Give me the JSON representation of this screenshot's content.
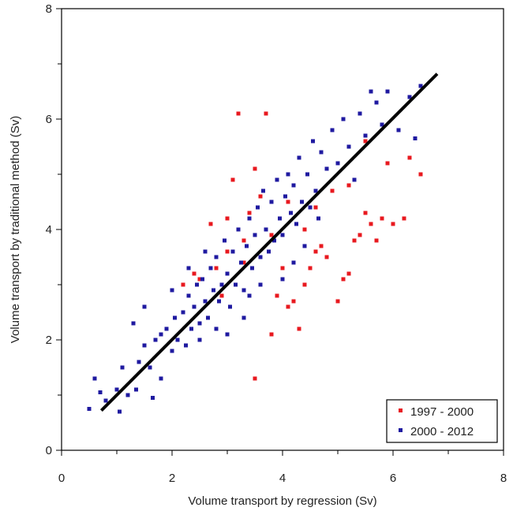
{
  "chart_data": {
    "type": "scatter",
    "title": "",
    "xlabel": "Volume transport by regression (Sv)",
    "ylabel": "Volume transport by traditional method (Sv)",
    "xlim": [
      0,
      8
    ],
    "ylim": [
      0,
      8
    ],
    "x_ticks": [
      "0",
      "2",
      "4",
      "6",
      "8"
    ],
    "y_ticks": [
      "0",
      "2",
      "4",
      "6",
      "8"
    ],
    "grid": false,
    "legend_position": "bottom-right",
    "colors": {
      "red_series": "#e8191f",
      "blue_series": "#1f1aa0",
      "fit_line": "#000000"
    },
    "series": [
      {
        "name": "1997 - 2000",
        "points": [
          [
            2.2,
            3.0
          ],
          [
            2.4,
            3.2
          ],
          [
            2.5,
            3.1
          ],
          [
            2.7,
            4.1
          ],
          [
            2.8,
            3.3
          ],
          [
            2.9,
            2.8
          ],
          [
            3.0,
            3.6
          ],
          [
            3.1,
            4.9
          ],
          [
            3.2,
            6.1
          ],
          [
            3.3,
            3.4
          ],
          [
            3.4,
            4.3
          ],
          [
            3.5,
            5.1
          ],
          [
            3.6,
            4.6
          ],
          [
            3.7,
            6.1
          ],
          [
            3.8,
            3.9
          ],
          [
            3.9,
            2.8
          ],
          [
            4.0,
            3.3
          ],
          [
            4.1,
            4.5
          ],
          [
            4.2,
            2.7
          ],
          [
            4.3,
            2.2
          ],
          [
            4.4,
            4.0
          ],
          [
            4.5,
            3.3
          ],
          [
            4.6,
            3.6
          ],
          [
            4.7,
            3.7
          ],
          [
            4.8,
            3.5
          ],
          [
            4.9,
            4.7
          ],
          [
            5.0,
            2.7
          ],
          [
            5.1,
            3.1
          ],
          [
            5.2,
            3.2
          ],
          [
            5.3,
            3.8
          ],
          [
            5.4,
            3.9
          ],
          [
            5.5,
            4.3
          ],
          [
            5.6,
            4.1
          ],
          [
            5.7,
            3.8
          ],
          [
            5.8,
            4.2
          ],
          [
            6.0,
            4.1
          ],
          [
            6.2,
            4.2
          ],
          [
            6.3,
            5.3
          ],
          [
            6.5,
            5.0
          ],
          [
            5.9,
            5.2
          ],
          [
            3.5,
            1.3
          ],
          [
            3.8,
            2.1
          ],
          [
            4.1,
            2.6
          ],
          [
            4.4,
            3.0
          ],
          [
            3.0,
            4.2
          ],
          [
            5.2,
            4.8
          ],
          [
            5.5,
            5.6
          ],
          [
            4.6,
            4.4
          ],
          [
            2.6,
            2.7
          ],
          [
            3.3,
            3.8
          ]
        ]
      },
      {
        "name": "2000 - 2012",
        "points": [
          [
            0.5,
            0.75
          ],
          [
            0.6,
            1.3
          ],
          [
            0.7,
            1.05
          ],
          [
            0.8,
            0.9
          ],
          [
            1.0,
            1.1
          ],
          [
            1.05,
            0.7
          ],
          [
            1.1,
            1.5
          ],
          [
            1.2,
            1.0
          ],
          [
            1.3,
            2.3
          ],
          [
            1.35,
            1.1
          ],
          [
            1.4,
            1.6
          ],
          [
            1.5,
            2.6
          ],
          [
            1.6,
            1.5
          ],
          [
            1.65,
            0.95
          ],
          [
            1.7,
            2.0
          ],
          [
            1.8,
            1.3
          ],
          [
            1.9,
            2.2
          ],
          [
            2.0,
            1.8
          ],
          [
            2.05,
            2.4
          ],
          [
            2.1,
            2.0
          ],
          [
            2.2,
            2.5
          ],
          [
            2.25,
            1.9
          ],
          [
            2.3,
            2.8
          ],
          [
            2.35,
            2.2
          ],
          [
            2.4,
            2.6
          ],
          [
            2.45,
            3.0
          ],
          [
            2.5,
            2.3
          ],
          [
            2.55,
            3.1
          ],
          [
            2.6,
            2.7
          ],
          [
            2.65,
            2.4
          ],
          [
            2.7,
            3.3
          ],
          [
            2.75,
            2.9
          ],
          [
            2.8,
            3.5
          ],
          [
            2.85,
            2.7
          ],
          [
            2.9,
            3.0
          ],
          [
            2.95,
            3.8
          ],
          [
            3.0,
            3.2
          ],
          [
            3.05,
            2.6
          ],
          [
            3.1,
            3.6
          ],
          [
            3.15,
            3.0
          ],
          [
            3.2,
            4.0
          ],
          [
            3.25,
            3.4
          ],
          [
            3.3,
            2.9
          ],
          [
            3.35,
            3.7
          ],
          [
            3.4,
            4.2
          ],
          [
            3.45,
            3.3
          ],
          [
            3.5,
            3.9
          ],
          [
            3.55,
            4.4
          ],
          [
            3.6,
            3.5
          ],
          [
            3.65,
            4.7
          ],
          [
            3.7,
            4.0
          ],
          [
            3.75,
            3.6
          ],
          [
            3.8,
            4.5
          ],
          [
            3.85,
            3.8
          ],
          [
            3.9,
            4.9
          ],
          [
            3.95,
            4.2
          ],
          [
            4.0,
            3.9
          ],
          [
            4.05,
            4.6
          ],
          [
            4.1,
            5.0
          ],
          [
            4.15,
            4.3
          ],
          [
            4.2,
            4.8
          ],
          [
            4.25,
            4.1
          ],
          [
            4.3,
            5.3
          ],
          [
            4.35,
            4.5
          ],
          [
            4.4,
            3.7
          ],
          [
            4.45,
            5.0
          ],
          [
            4.5,
            4.4
          ],
          [
            4.55,
            5.6
          ],
          [
            4.6,
            4.7
          ],
          [
            4.65,
            4.2
          ],
          [
            4.7,
            5.4
          ],
          [
            4.8,
            5.1
          ],
          [
            4.9,
            5.8
          ],
          [
            5.0,
            5.2
          ],
          [
            5.1,
            6.0
          ],
          [
            5.2,
            5.5
          ],
          [
            5.3,
            4.9
          ],
          [
            5.4,
            6.1
          ],
          [
            5.5,
            5.7
          ],
          [
            5.6,
            6.5
          ],
          [
            5.7,
            6.3
          ],
          [
            5.8,
            5.9
          ],
          [
            5.9,
            6.5
          ],
          [
            6.1,
            5.8
          ],
          [
            6.3,
            6.4
          ],
          [
            6.5,
            6.6
          ],
          [
            6.4,
            5.65
          ],
          [
            3.0,
            2.1
          ],
          [
            3.3,
            2.4
          ],
          [
            2.8,
            2.2
          ],
          [
            3.6,
            3.0
          ],
          [
            4.0,
            3.1
          ],
          [
            4.2,
            3.4
          ],
          [
            3.4,
            2.8
          ],
          [
            2.5,
            2.0
          ],
          [
            2.0,
            2.9
          ],
          [
            1.8,
            2.1
          ],
          [
            1.5,
            1.9
          ],
          [
            2.3,
            3.3
          ],
          [
            2.6,
            3.6
          ]
        ]
      },
      {
        "name": "",
        "type": "line",
        "points": [
          [
            0.72,
            0.72
          ],
          [
            6.8,
            6.82
          ]
        ]
      }
    ]
  }
}
